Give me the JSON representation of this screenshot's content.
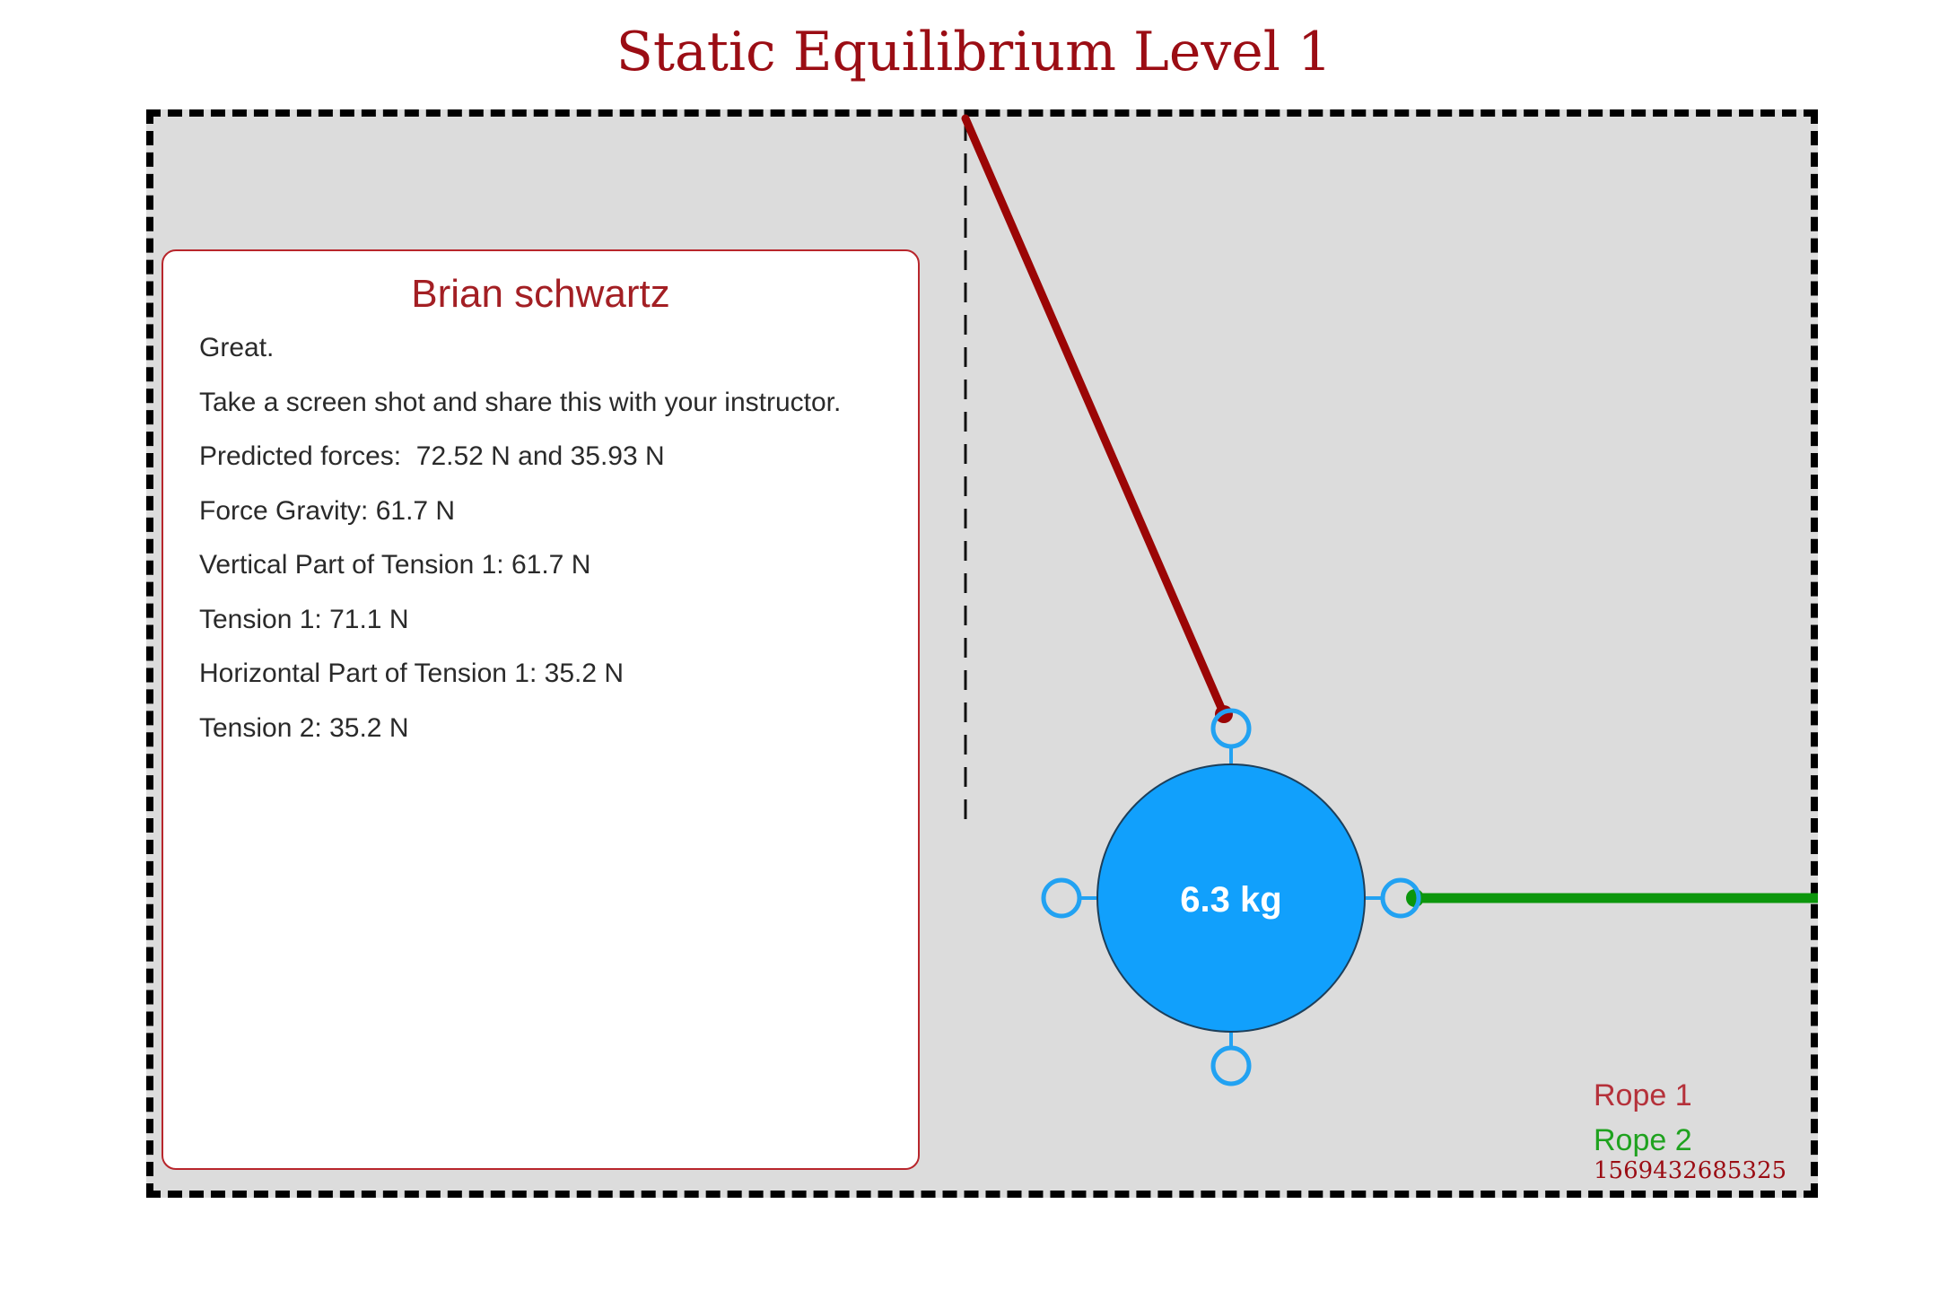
{
  "page": {
    "title": "Static Equilibrium Level 1"
  },
  "results": {
    "name": "Brian schwartz",
    "lines": [
      "Great.",
      "Take a screen shot and share this with your instructor.",
      "Predicted forces:  72.52 N and 35.93 N",
      "Force Gravity: 61.7 N",
      "Vertical Part of Tension 1: 61.7 N",
      "Tension 1: 71.1 N",
      "Horizontal Part of Tension 1: 35.2 N",
      "Tension 2: 35.2 N"
    ]
  },
  "mass": {
    "label": "6.3 kg",
    "fill_color": "#11a0fc",
    "handle_color": "#22a2f2"
  },
  "ropes": {
    "rope1": {
      "label": "Rope 1",
      "color": "#9b0505"
    },
    "rope2": {
      "label": "Rope 2",
      "color": "#0c960c"
    }
  },
  "legend": {
    "rope1_label": "Rope 1",
    "rope2_label": "Rope 2",
    "stamp": "1569432685325"
  }
}
